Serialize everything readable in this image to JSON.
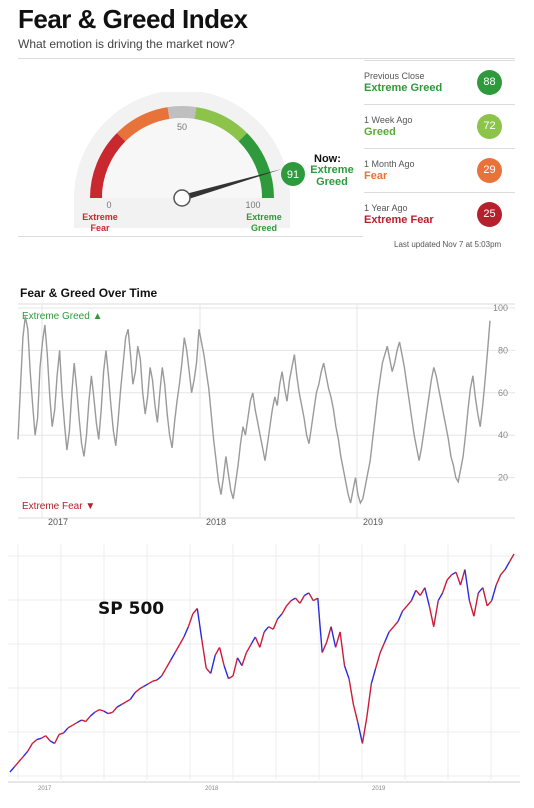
{
  "header": {
    "title": "Fear & Greed Index",
    "subtitle": "What emotion is driving the market now?"
  },
  "gauge": {
    "value": 91,
    "ticks": [
      "0",
      "50",
      "100"
    ],
    "left_label": [
      "Extreme",
      "Fear"
    ],
    "right_label": [
      "Extreme",
      "Greed"
    ],
    "now_label": "Now:",
    "now_value": [
      "Extreme",
      "Greed"
    ],
    "colors": {
      "extreme_fear": "#c8282e",
      "fear": "#e8733a",
      "neutral": "#bfbfbf",
      "greed": "#8cc34a",
      "extreme_greed": "#2e9a3b"
    }
  },
  "comparisons": [
    {
      "label": "Previous Close",
      "value": "Extreme Greed",
      "score": "88",
      "color": "#2e9a3b"
    },
    {
      "label": "1 Week Ago",
      "value": "Greed",
      "score": "72",
      "color": "#8cc34a"
    },
    {
      "label": "1 Month Ago",
      "value": "Fear",
      "score": "29",
      "color": "#e8733a"
    },
    {
      "label": "1 Year Ago",
      "value": "Extreme Fear",
      "score": "25",
      "color": "#b5202c"
    }
  ],
  "updated": "Last updated Nov 7 at 5:03pm",
  "chart_data": [
    {
      "type": "line",
      "title": "Fear & Greed Over Time",
      "top_annotation": "Extreme Greed ▲",
      "bottom_annotation": "Extreme Fear ▼",
      "x_ticks": [
        "2017",
        "2018",
        "2019"
      ],
      "y_ticks": [
        20,
        40,
        60,
        80,
        100
      ],
      "ylim": [
        0,
        100
      ],
      "grid": true,
      "series": [
        {
          "color": "#9a9a9a",
          "values": [
            38,
            62,
            86,
            96,
            90,
            70,
            54,
            40,
            48,
            72,
            84,
            92,
            78,
            58,
            44,
            52,
            68,
            80,
            60,
            45,
            33,
            42,
            60,
            74,
            62,
            48,
            36,
            30,
            40,
            56,
            68,
            58,
            46,
            38,
            52,
            70,
            80,
            68,
            54,
            42,
            35,
            48,
            62,
            74,
            86,
            90,
            78,
            64,
            70,
            82,
            76,
            60,
            50,
            58,
            72,
            66,
            54,
            46,
            60,
            72,
            64,
            50,
            40,
            34,
            46,
            56,
            64,
            74,
            86,
            80,
            70,
            60,
            66,
            74,
            90,
            84,
            78,
            70,
            62,
            50,
            38,
            28,
            18,
            12,
            20,
            30,
            22,
            14,
            10,
            18,
            26,
            36,
            44,
            40,
            48,
            56,
            60,
            52,
            46,
            40,
            34,
            28,
            36,
            44,
            52,
            58,
            54,
            64,
            70,
            62,
            56,
            66,
            72,
            78,
            68,
            60,
            54,
            48,
            40,
            36,
            44,
            52,
            60,
            64,
            70,
            74,
            68,
            62,
            58,
            52,
            44,
            38,
            30,
            24,
            18,
            12,
            8,
            14,
            20,
            12,
            8,
            10,
            16,
            22,
            28,
            38,
            48,
            58,
            66,
            74,
            78,
            82,
            76,
            70,
            74,
            80,
            84,
            78,
            72,
            64,
            56,
            48,
            40,
            34,
            28,
            34,
            42,
            50,
            58,
            66,
            72,
            68,
            62,
            56,
            50,
            44,
            38,
            30,
            26,
            20,
            18,
            24,
            30,
            40,
            52,
            62,
            68,
            58,
            50,
            44,
            54,
            66,
            80,
            94
          ]
        }
      ]
    },
    {
      "type": "line",
      "title": "SP 500",
      "x_ticks": [
        "2017",
        "2018",
        "2019"
      ],
      "series": [
        {
          "colors": [
            "#cc1b3a",
            "#2a2ae0"
          ],
          "values": [
            2240,
            2260,
            2280,
            2300,
            2320,
            2350,
            2365,
            2370,
            2380,
            2360,
            2350,
            2385,
            2390,
            2410,
            2420,
            2430,
            2440,
            2435,
            2455,
            2470,
            2480,
            2475,
            2465,
            2470,
            2490,
            2500,
            2510,
            2520,
            2545,
            2560,
            2570,
            2580,
            2590,
            2595,
            2610,
            2640,
            2670,
            2700,
            2730,
            2760,
            2800,
            2850,
            2870,
            2750,
            2640,
            2620,
            2690,
            2720,
            2650,
            2600,
            2610,
            2680,
            2650,
            2700,
            2730,
            2760,
            2720,
            2780,
            2800,
            2790,
            2830,
            2850,
            2880,
            2900,
            2910,
            2890,
            2920,
            2930,
            2900,
            2910,
            2700,
            2740,
            2800,
            2720,
            2780,
            2650,
            2600,
            2500,
            2430,
            2350,
            2450,
            2580,
            2640,
            2700,
            2740,
            2780,
            2800,
            2820,
            2860,
            2880,
            2900,
            2940,
            2920,
            2950,
            2880,
            2800,
            2900,
            2930,
            2980,
            3000,
            3010,
            2960,
            3020,
            2900,
            2840,
            2930,
            2950,
            2880,
            2900,
            2960,
            3000,
            3020,
            3050,
            3080
          ]
        }
      ]
    }
  ]
}
